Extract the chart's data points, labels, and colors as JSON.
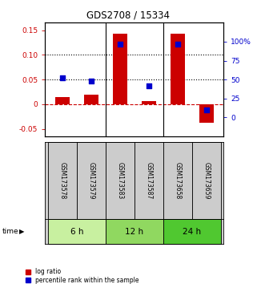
{
  "title": "GDS2708 / 15334",
  "samples": [
    "GSM173578",
    "GSM173579",
    "GSM173583",
    "GSM173587",
    "GSM173658",
    "GSM173659"
  ],
  "log_ratio": [
    0.015,
    0.02,
    0.143,
    0.007,
    0.143,
    -0.038
  ],
  "percentile_rank_pct": [
    52,
    48,
    97,
    42,
    97,
    10
  ],
  "time_groups": [
    {
      "label": "6 h",
      "start": 0,
      "end": 2,
      "color": "#c8f0a0"
    },
    {
      "label": "12 h",
      "start": 2,
      "end": 4,
      "color": "#90d860"
    },
    {
      "label": "24 h",
      "start": 4,
      "end": 6,
      "color": "#50c830"
    }
  ],
  "left_ylim": [
    -0.065,
    0.165
  ],
  "left_yticks": [
    -0.05,
    0.0,
    0.05,
    0.1,
    0.15
  ],
  "left_ytick_labels": [
    "-0.05",
    "0",
    "0.05",
    "0.10",
    "0.15"
  ],
  "right_ylim": [
    -25,
    125
  ],
  "right_yticks": [
    0,
    25,
    50,
    75,
    100
  ],
  "right_ytick_labels": [
    "0",
    "25",
    "50",
    "75",
    "100%"
  ],
  "bar_color_red": "#cc0000",
  "bar_color_blue": "#0000cc",
  "grid_color": "#000000",
  "zero_line_color": "#cc0000",
  "bar_width": 0.5,
  "background_color": "#ffffff"
}
